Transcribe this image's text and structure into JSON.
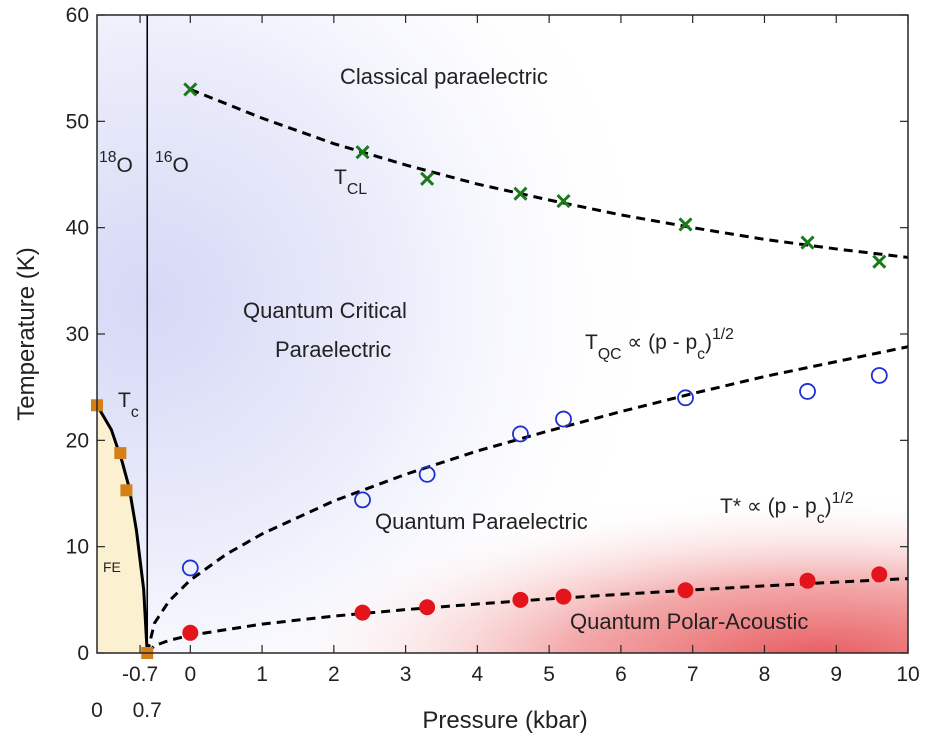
{
  "chart_data": {
    "type": "scatter",
    "xlabel": "Pressure (kbar)",
    "ylabel": "Temperature (K)",
    "xlim": [
      -1.3,
      10
    ],
    "ylim": [
      0,
      60
    ],
    "xticks": [
      -0.7,
      0,
      1,
      2,
      3,
      4,
      5,
      6,
      7,
      8,
      9,
      10
    ],
    "x2ticks": [
      {
        "value": -1.3,
        "label": "0"
      },
      {
        "value": -0.6,
        "label": "0.7"
      }
    ],
    "yticks": [
      0,
      10,
      20,
      30,
      40,
      50,
      60
    ],
    "divider_x": -0.6,
    "series": [
      {
        "marker": "x",
        "color": "#1a7a1a",
        "x": [
          0,
          2.4,
          3.3,
          4.6,
          5.2,
          6.9,
          8.6,
          9.6
        ],
        "y": [
          53,
          47.1,
          44.6,
          43.2,
          42.5,
          40.3,
          38.6,
          36.8
        ]
      },
      {
        "marker": "open-circle",
        "color": "#1f2fd0",
        "x": [
          0,
          2.4,
          3.3,
          4.6,
          5.2,
          6.9,
          8.6,
          9.6
        ],
        "y": [
          8,
          14.4,
          16.8,
          20.6,
          22,
          24,
          24.6,
          26.1
        ]
      },
      {
        "marker": "dot",
        "color": "#e3141c",
        "x": [
          0,
          2.4,
          3.3,
          4.6,
          5.2,
          6.9,
          8.6,
          9.6
        ],
        "y": [
          1.9,
          3.8,
          4.3,
          5,
          5.3,
          5.9,
          6.8,
          7.4
        ]
      },
      {
        "marker": "square",
        "color": "#d4801a",
        "x": [
          -1.3,
          -0.975,
          -0.89,
          -0.6
        ],
        "y": [
          23.3,
          18.8,
          15.3,
          0
        ]
      }
    ],
    "curves": [
      {
        "style": "dashed",
        "x": [
          0,
          1,
          2,
          3,
          4,
          5,
          6,
          7,
          8,
          9,
          10
        ],
        "y": [
          53,
          50.3,
          47.9,
          45.9,
          44.1,
          42.6,
          41.2,
          40,
          38.9,
          38,
          37.2
        ]
      },
      {
        "style": "dashed",
        "x": [
          -0.6,
          -0.5,
          -0.3,
          0,
          0.5,
          1,
          2,
          3,
          4,
          5,
          6,
          7,
          8,
          9,
          10
        ],
        "y": [
          0,
          2.8,
          4.85,
          6.86,
          9.28,
          11.2,
          14.3,
          16.8,
          19,
          20.9,
          22.7,
          24.4,
          26,
          27.4,
          28.8
        ]
      },
      {
        "style": "dashed",
        "x": [
          -0.6,
          -0.5,
          -0.3,
          0,
          1,
          2,
          3,
          4,
          5,
          6,
          7,
          8,
          9,
          10
        ],
        "y": [
          0,
          0.68,
          1.18,
          1.67,
          2.72,
          3.47,
          4.08,
          4.61,
          5.09,
          5.52,
          5.93,
          6.31,
          6.66,
          7
        ]
      },
      {
        "style": "solid",
        "fill": "#fbf0cf",
        "x": [
          -1.3,
          -1.1,
          -0.95,
          -0.85,
          -0.75,
          -0.65,
          -0.6
        ],
        "y": [
          23.3,
          21,
          18,
          15.5,
          11.5,
          6,
          0
        ]
      }
    ],
    "annotations": [
      [
        {
          "text": "Classical paraelectric"
        }
      ],
      [
        {
          "text": "18",
          "shift": "sup"
        },
        {
          "text": "O"
        }
      ],
      [
        {
          "text": "16",
          "shift": "sup"
        },
        {
          "text": "O"
        }
      ],
      [
        {
          "text": "T"
        },
        {
          "text": "CL",
          "shift": "sub"
        }
      ],
      [
        {
          "text": "Quantum Critical"
        }
      ],
      [
        {
          "text": "Paraelectric"
        }
      ],
      [
        {
          "text": "T"
        },
        {
          "text": "QC",
          "shift": "sub"
        },
        {
          "text": " ∝ (p - p"
        },
        {
          "text": "c",
          "shift": "sub"
        },
        {
          "text": ")"
        },
        {
          "text": "1/2",
          "shift": "sup"
        }
      ],
      [
        {
          "text": "T"
        },
        {
          "text": "c",
          "shift": "sub"
        }
      ],
      [
        {
          "text": "Quantum Paraelectric"
        }
      ],
      [
        {
          "text": "T* ∝ (p - p"
        },
        {
          "text": "c",
          "shift": "sub"
        },
        {
          "text": ")"
        },
        {
          "text": "1/2",
          "shift": "sup"
        }
      ],
      [
        {
          "text": "FE"
        }
      ],
      [
        {
          "text": "Quantum Polar-Acoustic"
        }
      ]
    ]
  }
}
